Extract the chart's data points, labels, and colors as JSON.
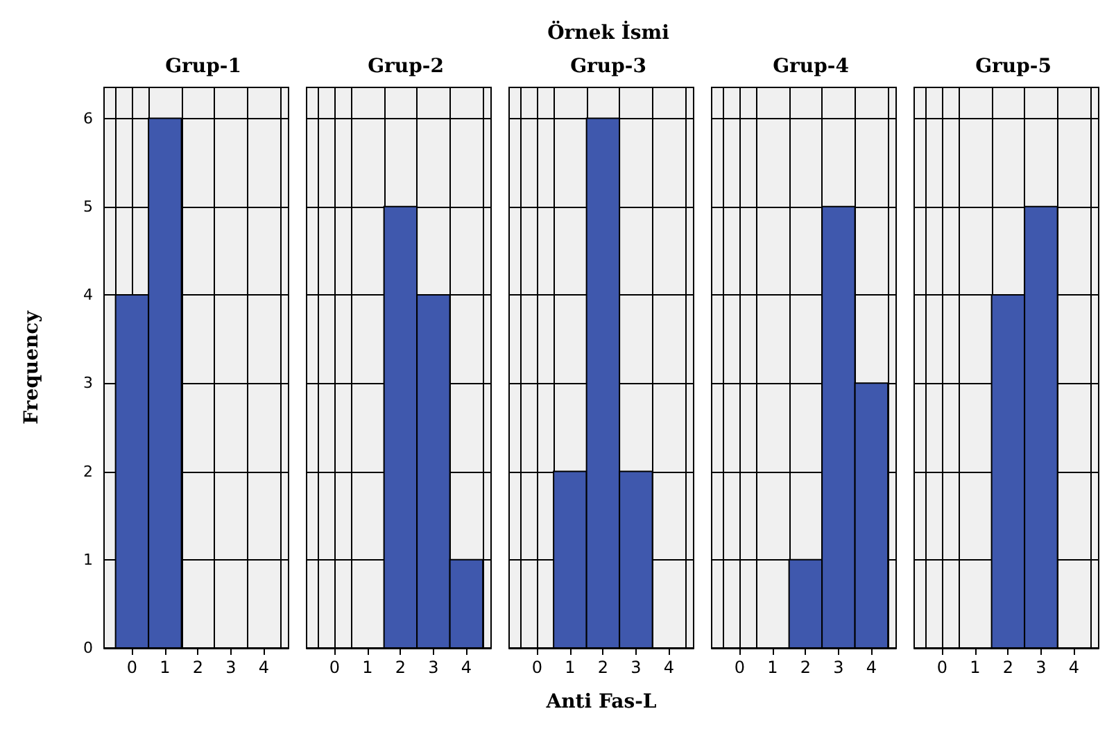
{
  "chart_data": [
    {
      "type": "histogram",
      "title": "Grup-1",
      "ylabel": "Frequency",
      "bins": [
        -0.5,
        0.5,
        1.5,
        2.5,
        3.5,
        4.5
      ],
      "values": [
        4,
        6,
        0,
        0,
        0
      ],
      "color": "#3f58ad",
      "xlim": [
        -0.85,
        4.75
      ],
      "xticks": [
        0,
        1,
        2,
        3,
        4
      ],
      "ylim": [
        0,
        6.35
      ],
      "yticks": [
        0,
        1,
        2,
        3,
        4,
        5,
        6
      ],
      "grid": true
    },
    {
      "type": "histogram",
      "title": "Grup-2",
      "bins": [
        -0.5,
        0.5,
        1.5,
        2.5,
        3.5,
        4.5
      ],
      "values": [
        0,
        0,
        5,
        4,
        1
      ],
      "color": "#3f58ad",
      "xlim": [
        -0.85,
        4.75
      ],
      "xticks": [
        0,
        1,
        2,
        3,
        4
      ],
      "ylim": [
        0,
        6.35
      ],
      "yticks": [
        0,
        1,
        2,
        3,
        4,
        5,
        6
      ],
      "grid": true,
      "tick_labels": "x"
    },
    {
      "type": "histogram",
      "title": "Grup-3",
      "xlabel": "Anti Fas-L",
      "annotations": [
        "Örnek İsmi"
      ],
      "bins": [
        -0.5,
        0.5,
        1.5,
        2.5,
        3.5,
        4.5
      ],
      "values": [
        0,
        2,
        6,
        2,
        0
      ],
      "color": "#3f58ad",
      "xlim": [
        -0.85,
        4.75
      ],
      "xticks": [
        0,
        1,
        2,
        3,
        4
      ],
      "ylim": [
        0,
        6.35
      ],
      "yticks": [
        0,
        1,
        2,
        3,
        4,
        5,
        6
      ],
      "grid": true,
      "tick_labels": "x"
    },
    {
      "type": "histogram",
      "title": "Grup-4",
      "bins": [
        -0.5,
        0.5,
        1.5,
        2.5,
        3.5,
        4.5
      ],
      "values": [
        0,
        0,
        1,
        5,
        3
      ],
      "color": "#3f58ad",
      "xlim": [
        -0.85,
        4.75
      ],
      "xticks": [
        0,
        1,
        2,
        3,
        4
      ],
      "ylim": [
        0,
        6.35
      ],
      "yticks": [
        0,
        1,
        2,
        3,
        4,
        5,
        6
      ],
      "grid": true,
      "tick_labels": "x"
    },
    {
      "type": "histogram",
      "title": "Grup-5",
      "bins": [
        -0.5,
        0.5,
        1.5,
        2.5,
        3.5,
        4.5
      ],
      "values": [
        0,
        0,
        4,
        5,
        0
      ],
      "color": "#3f58ad",
      "xlim": [
        -0.85,
        4.75
      ],
      "xticks": [
        0,
        1,
        2,
        3,
        4
      ],
      "ylim": [
        0,
        6.35
      ],
      "yticks": [
        0,
        1,
        2,
        3,
        4,
        5,
        6
      ],
      "grid": true,
      "tick_labels": "x"
    }
  ]
}
